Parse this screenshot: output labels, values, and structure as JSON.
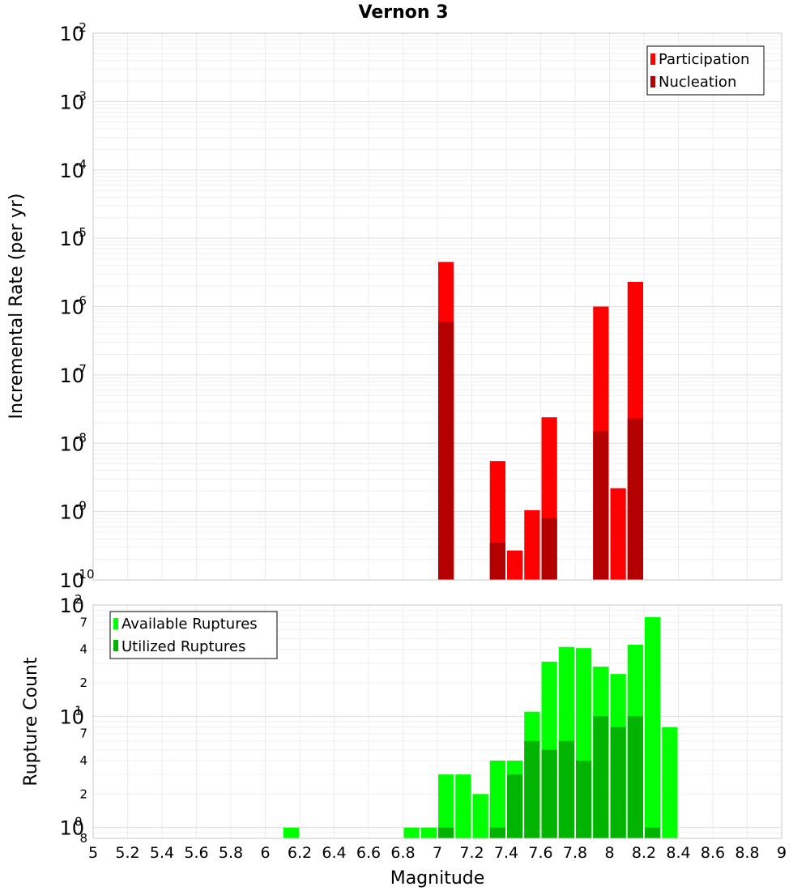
{
  "chart_data": [
    {
      "type": "bar",
      "title": "Vernon 3",
      "xlabel": "",
      "ylabel": "Incremental Rate (per yr)",
      "yscale": "log",
      "ylim": [
        1e-10,
        0.01
      ],
      "xlim": [
        5,
        9
      ],
      "bin_width": 0.1,
      "y_ticks": [
        {
          "base": "10",
          "exp": "-10",
          "value": 1e-10
        },
        {
          "base": "10",
          "exp": "-9",
          "value": 1e-09
        },
        {
          "base": "10",
          "exp": "-8",
          "value": 1e-08
        },
        {
          "base": "10",
          "exp": "-7",
          "value": 1e-07
        },
        {
          "base": "10",
          "exp": "-6",
          "value": 1e-06
        },
        {
          "base": "10",
          "exp": "-5",
          "value": 1e-05
        },
        {
          "base": "10",
          "exp": "-4",
          "value": 0.0001
        },
        {
          "base": "10",
          "exp": "-3",
          "value": 0.001
        },
        {
          "base": "10",
          "exp": "-2",
          "value": 0.01
        }
      ],
      "legend": {
        "position": "top-right",
        "entries": [
          "Participation",
          "Nucleation"
        ]
      },
      "grid": true,
      "series": [
        {
          "name": "Participation",
          "color": "#ff0000",
          "points": [
            {
              "x": 7.05,
              "y": 4.5e-06
            },
            {
              "x": 7.35,
              "y": 5.5e-09
            },
            {
              "x": 7.45,
              "y": 2.7e-10
            },
            {
              "x": 7.55,
              "y": 1.05e-09
            },
            {
              "x": 7.65,
              "y": 2.4e-08
            },
            {
              "x": 7.95,
              "y": 1e-06
            },
            {
              "x": 8.05,
              "y": 2.2e-09
            },
            {
              "x": 8.15,
              "y": 2.3e-06
            }
          ]
        },
        {
          "name": "Nucleation",
          "color": "#b40000",
          "points": [
            {
              "x": 7.05,
              "y": 6e-07
            },
            {
              "x": 7.35,
              "y": 3.5e-10
            },
            {
              "x": 7.65,
              "y": 8e-10
            },
            {
              "x": 7.95,
              "y": 1.5e-08
            },
            {
              "x": 8.15,
              "y": 2.3e-08
            }
          ]
        }
      ]
    },
    {
      "type": "bar",
      "title": "",
      "xlabel": "Magnitude",
      "ylabel": "Rupture Count",
      "yscale": "log",
      "ylim": [
        0.8,
        100
      ],
      "xlim": [
        5,
        9
      ],
      "bin_width": 0.1,
      "x_ticks": [
        "5",
        "5.2",
        "5.4",
        "5.6",
        "5.8",
        "6",
        "6.2",
        "6.4",
        "6.6",
        "6.8",
        "7",
        "7.2",
        "7.4",
        "7.6",
        "7.8",
        "8",
        "8.2",
        "8.4",
        "8.6",
        "8.8",
        "9"
      ],
      "y_ticks": [
        {
          "base": "10",
          "exp": "2",
          "value": 100
        },
        {
          "base": "10",
          "exp": "1",
          "value": 10
        },
        {
          "base": "10",
          "exp": "0",
          "value": 1
        }
      ],
      "y_minor_ticks": [
        {
          "label": "7",
          "value": 70
        },
        {
          "label": "4",
          "value": 40
        },
        {
          "label": "2",
          "value": 20
        },
        {
          "label": "7",
          "value": 7
        },
        {
          "label": "4",
          "value": 4
        },
        {
          "label": "2",
          "value": 2
        },
        {
          "label": "8",
          "value": 0.8
        }
      ],
      "legend": {
        "position": "top-left",
        "entries": [
          "Available Ruptures",
          "Utilized Ruptures"
        ]
      },
      "grid": true,
      "series": [
        {
          "name": "Available Ruptures",
          "color": "#00ff00",
          "points": [
            {
              "x": 6.15,
              "y": 1
            },
            {
              "x": 6.85,
              "y": 1
            },
            {
              "x": 6.95,
              "y": 1
            },
            {
              "x": 7.05,
              "y": 3
            },
            {
              "x": 7.15,
              "y": 3
            },
            {
              "x": 7.25,
              "y": 2
            },
            {
              "x": 7.35,
              "y": 4
            },
            {
              "x": 7.45,
              "y": 4
            },
            {
              "x": 7.55,
              "y": 11
            },
            {
              "x": 7.65,
              "y": 31
            },
            {
              "x": 7.75,
              "y": 42
            },
            {
              "x": 7.85,
              "y": 41
            },
            {
              "x": 7.95,
              "y": 28
            },
            {
              "x": 8.05,
              "y": 24
            },
            {
              "x": 8.15,
              "y": 44
            },
            {
              "x": 8.25,
              "y": 78
            },
            {
              "x": 8.35,
              "y": 8
            }
          ]
        },
        {
          "name": "Utilized Ruptures",
          "color": "#00b400",
          "points": [
            {
              "x": 7.05,
              "y": 1
            },
            {
              "x": 7.35,
              "y": 1
            },
            {
              "x": 7.45,
              "y": 3
            },
            {
              "x": 7.55,
              "y": 6
            },
            {
              "x": 7.65,
              "y": 5
            },
            {
              "x": 7.75,
              "y": 6
            },
            {
              "x": 7.85,
              "y": 4
            },
            {
              "x": 7.95,
              "y": 10
            },
            {
              "x": 8.05,
              "y": 8
            },
            {
              "x": 8.15,
              "y": 10
            },
            {
              "x": 8.25,
              "y": 1
            }
          ]
        }
      ]
    }
  ]
}
